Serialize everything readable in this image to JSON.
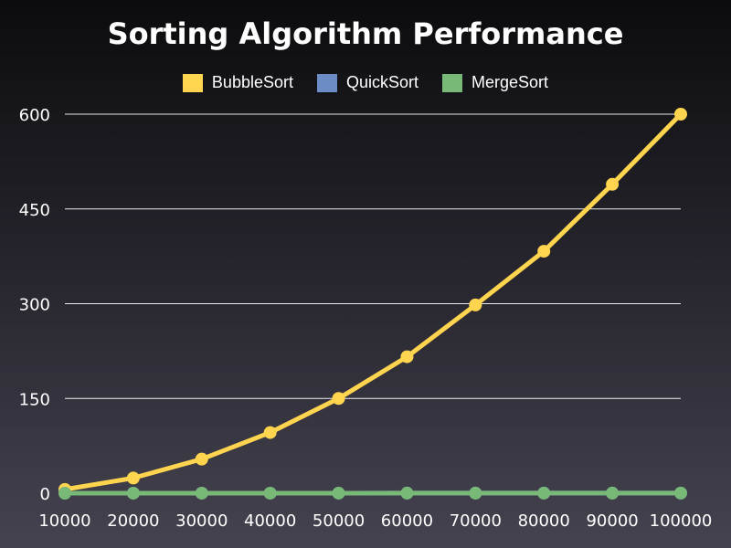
{
  "chart_data": {
    "type": "line",
    "title": "Sorting Algorithm Performance",
    "xlabel": "",
    "ylabel": "",
    "x": [
      10000,
      20000,
      30000,
      40000,
      50000,
      60000,
      70000,
      80000,
      90000,
      100000
    ],
    "x_tick_labels": [
      "10000",
      "20000",
      "30000",
      "40000",
      "50000",
      "60000",
      "70000",
      "80000",
      "90000",
      "100000"
    ],
    "ylim": [
      0,
      600
    ],
    "y_ticks": [
      0,
      150,
      300,
      450,
      600
    ],
    "grid": true,
    "legend_position": "top-center",
    "series": [
      {
        "name": "BubbleSort",
        "color": "#ffd54f",
        "values": [
          6,
          24,
          54,
          96,
          150,
          216,
          298,
          383,
          489,
          600
        ]
      },
      {
        "name": "QuickSort",
        "color": "#6b8cc4",
        "values": [
          0.013,
          0.029,
          0.045,
          0.061,
          0.078,
          0.095,
          0.112,
          0.13,
          0.147,
          0.166
        ]
      },
      {
        "name": "MergeSort",
        "color": "#78b978",
        "values": [
          0.013,
          0.029,
          0.045,
          0.061,
          0.078,
          0.095,
          0.112,
          0.13,
          0.147,
          0.166
        ]
      }
    ]
  }
}
